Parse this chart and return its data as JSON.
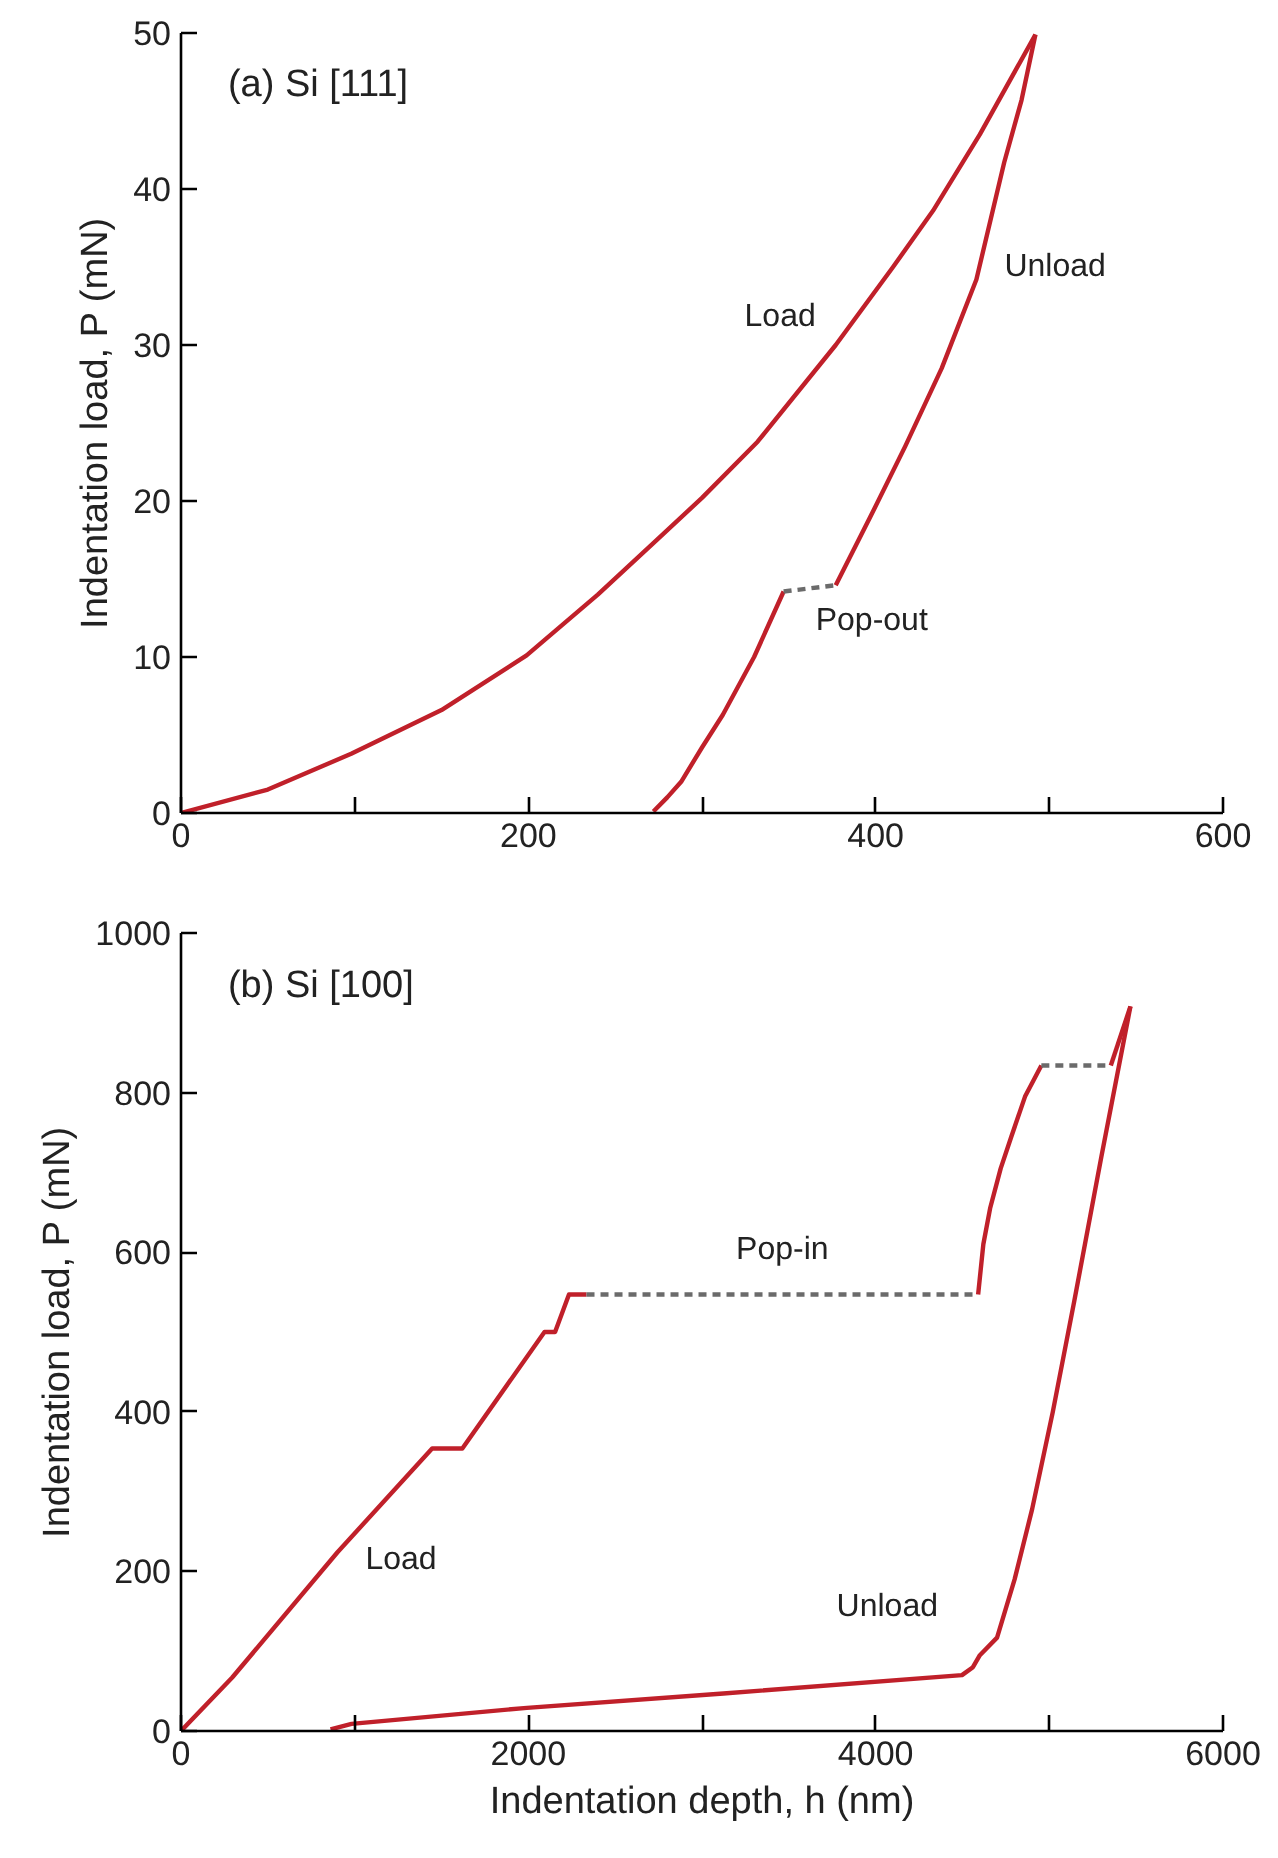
{
  "chart_data": [
    {
      "type": "line",
      "title": "(a) Si [111]",
      "ylabel": "Indentation load, P (mN)",
      "xlim": [
        0,
        600
      ],
      "ylim": [
        0,
        50
      ],
      "xticks": [
        0,
        {
          "value": 100,
          "label": null
        },
        200,
        {
          "value": 300,
          "label": null
        },
        400,
        {
          "value": 500,
          "label": null
        },
        600
      ],
      "yticks": [
        0,
        10,
        20,
        30,
        40,
        50
      ],
      "grid": false,
      "legend": false,
      "marker": "none",
      "series": [
        {
          "name": "Load",
          "color": "#c0202a",
          "line_style": "solid",
          "x": [
            0,
            50,
            98,
            150,
            199,
            240,
            272,
            300,
            332,
            377,
            410,
            433,
            460,
            492
          ],
          "values": [
            0,
            1.5,
            3.8,
            6.6,
            10.1,
            14,
            17.3,
            20.2,
            23.8,
            30.0,
            35,
            38.6,
            43.5,
            49.9
          ]
        },
        {
          "name": "Unload",
          "color": "#c0202a",
          "line_style": "solid",
          "x": [
            492,
            484,
            474,
            458,
            438,
            417,
            397,
            377,
            null,
            347,
            330,
            312,
            300,
            288,
            280,
            272
          ],
          "values": [
            49.9,
            45.7,
            41.7,
            34.2,
            28.5,
            23.5,
            19,
            14.6,
            null,
            14.2,
            10,
            6.3,
            4.2,
            2.0,
            1,
            0.1
          ]
        },
        {
          "name": "Pop-out",
          "color": "#6b6b6b",
          "line_style": "dashed",
          "x": [
            347,
            377
          ],
          "values": [
            14.2,
            14.6
          ]
        }
      ]
    },
    {
      "type": "line",
      "title": "(b) Si [100]",
      "xlabel": "Indentation depth, h (nm)",
      "ylabel": "Indentation load, P (mN)",
      "xlim": [
        0,
        6000
      ],
      "ylim": [
        0,
        1000
      ],
      "xticks": [
        0,
        {
          "value": 1000,
          "label": null
        },
        2000,
        {
          "value": 3000,
          "label": null
        },
        4000,
        {
          "value": 5000,
          "label": null
        },
        6000
      ],
      "yticks": [
        0,
        200,
        400,
        600,
        800,
        1000
      ],
      "grid": false,
      "legend": false,
      "marker": "none",
      "series": [
        {
          "name": "Load",
          "color": "#c0202a",
          "line_style": "solid",
          "x": [
            0,
            295,
            901,
            1446,
            1620,
            2093,
            2154,
            2234,
            2335,
            null,
            4590,
            4620,
            4659,
            4720,
            4780,
            4860,
            4954,
            null,
            5354,
            5467
          ],
          "values": [
            0,
            67,
            224,
            354,
            354,
            500,
            500,
            547,
            547,
            null,
            547,
            610,
            655,
            705,
            744,
            795,
            834,
            null,
            834,
            908
          ]
        },
        {
          "name": "Unload",
          "color": "#c0202a",
          "line_style": "solid",
          "x": [
            5467,
            5300,
            5143,
            5020,
            4901,
            4800,
            4699,
            4600,
            4560,
            4497,
            3123,
            1992,
            982,
            861
          ],
          "values": [
            908,
            720,
            538,
            400,
            278,
            190,
            117,
            95,
            80,
            70,
            47,
            29,
            9,
            2
          ]
        },
        {
          "name": "Pop-in",
          "color": "#6b6b6b",
          "line_style": "dashed",
          "x": [
            2335,
            4590
          ],
          "values": [
            547,
            547
          ]
        },
        {
          "color": "#6b6b6b",
          "line_style": "dashed",
          "x": [
            4954,
            5354
          ],
          "values": [
            834,
            834
          ]
        }
      ]
    }
  ]
}
